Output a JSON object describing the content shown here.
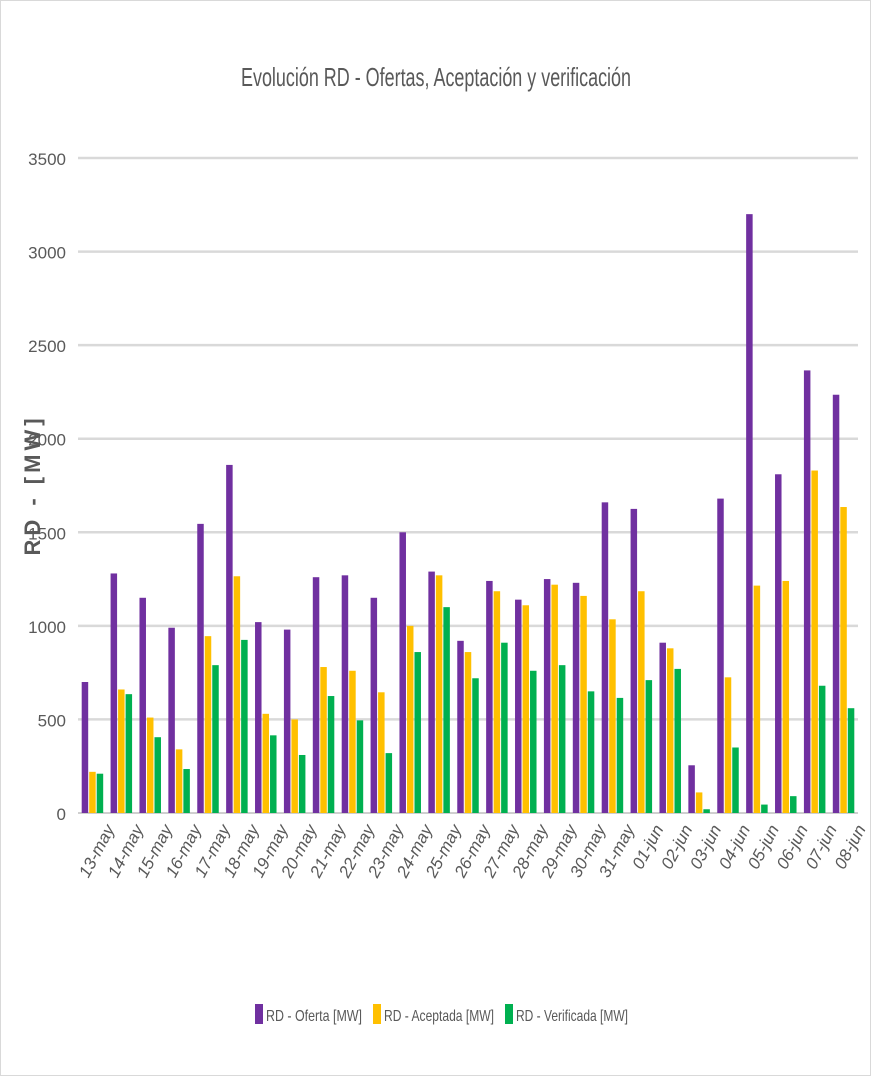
{
  "chart_data": {
    "type": "bar",
    "title": "Evolución RD -  Ofertas, Aceptación y verificación",
    "xlabel": "",
    "ylabel": "RD -  [MW]",
    "ylim": [
      0,
      3500
    ],
    "yticks": [
      0,
      500,
      1000,
      1500,
      2000,
      2500,
      3000,
      3500
    ],
    "grid": true,
    "legend_position": "bottom",
    "categories": [
      "13-may",
      "14-may",
      "15-may",
      "16-may",
      "17-may",
      "18-may",
      "19-may",
      "20-may",
      "21-may",
      "22-may",
      "23-may",
      "24-may",
      "25-may",
      "26-may",
      "27-may",
      "28-may",
      "29-may",
      "30-may",
      "31-may",
      "01-jun",
      "02-jun",
      "03-jun",
      "04-jun",
      "05-jun",
      "06-jun",
      "07-jun",
      "08-jun"
    ],
    "series": [
      {
        "name": "RD - Oferta [MW]",
        "color": "#7030a0",
        "values": [
          700,
          1280,
          1150,
          990,
          1545,
          1860,
          1020,
          980,
          1260,
          1270,
          1150,
          1500,
          1290,
          920,
          1240,
          1140,
          1250,
          1230,
          1660,
          1625,
          910,
          255,
          1680,
          3200,
          1810,
          2365,
          2235
        ]
      },
      {
        "name": "RD - Aceptada [MW]",
        "color": "#ffc000",
        "values": [
          220,
          660,
          510,
          340,
          945,
          1265,
          530,
          500,
          780,
          760,
          645,
          1000,
          1270,
          860,
          1185,
          1110,
          1220,
          1160,
          1035,
          1185,
          880,
          110,
          725,
          1215,
          1240,
          1830,
          1635
        ]
      },
      {
        "name": "RD - Verificada [MW]",
        "color": "#00b050",
        "values": [
          210,
          635,
          405,
          235,
          790,
          925,
          415,
          310,
          625,
          495,
          320,
          860,
          1100,
          720,
          910,
          760,
          790,
          650,
          615,
          710,
          770,
          20,
          350,
          45,
          90,
          680,
          560
        ]
      }
    ]
  }
}
